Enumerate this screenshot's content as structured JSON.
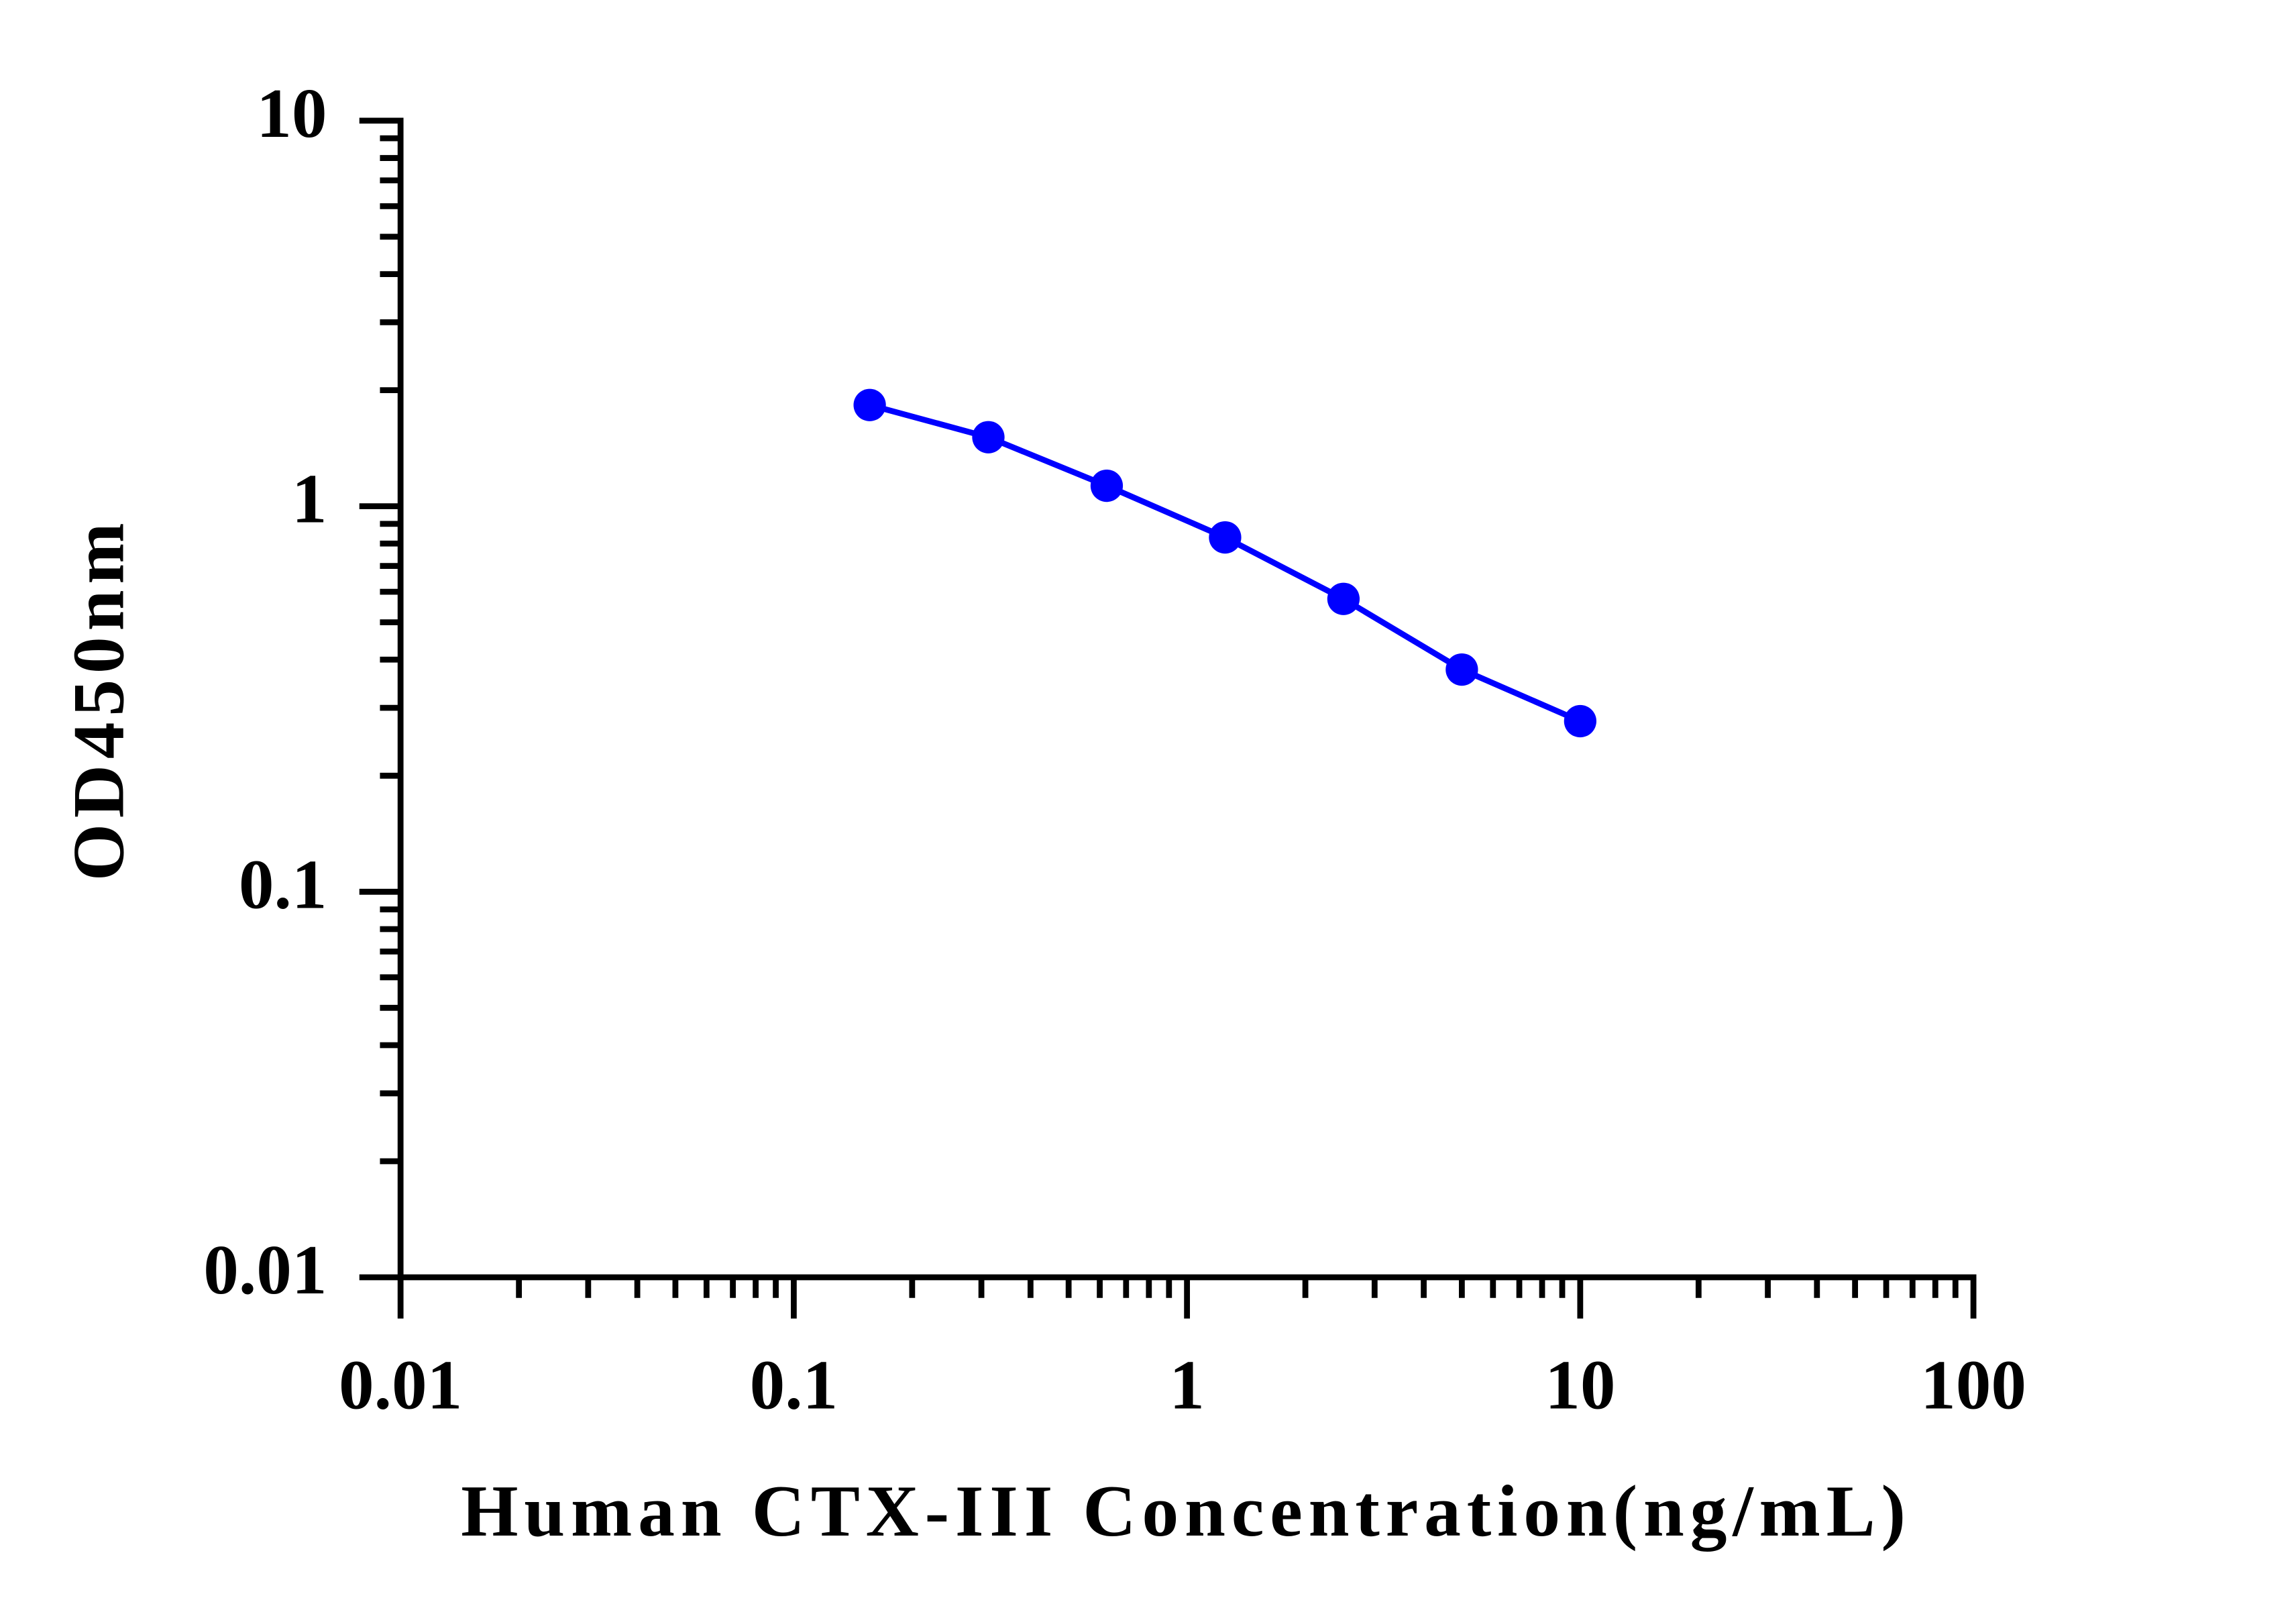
{
  "chart_data": {
    "type": "line",
    "x_label": "Human CTX-III Concentration(ng/mL)",
    "y_label": "OD450nm",
    "x": [
      0.156,
      0.3125,
      0.625,
      1.25,
      2.5,
      5,
      10
    ],
    "series": [
      {
        "color": "#0000ff",
        "values": [
          1.83,
          1.51,
          1.13,
          0.83,
          0.575,
          0.377,
          0.277
        ]
      }
    ],
    "xlim": [
      0.01,
      100
    ],
    "xticks": [
      0.01,
      0.1,
      1,
      10,
      100
    ],
    "ylim": [
      0.01,
      10
    ],
    "yticks": [
      0.01,
      0.1,
      1,
      10
    ],
    "xscale": "log",
    "yscale": "log",
    "minor_ticks": true,
    "grid": false
  }
}
